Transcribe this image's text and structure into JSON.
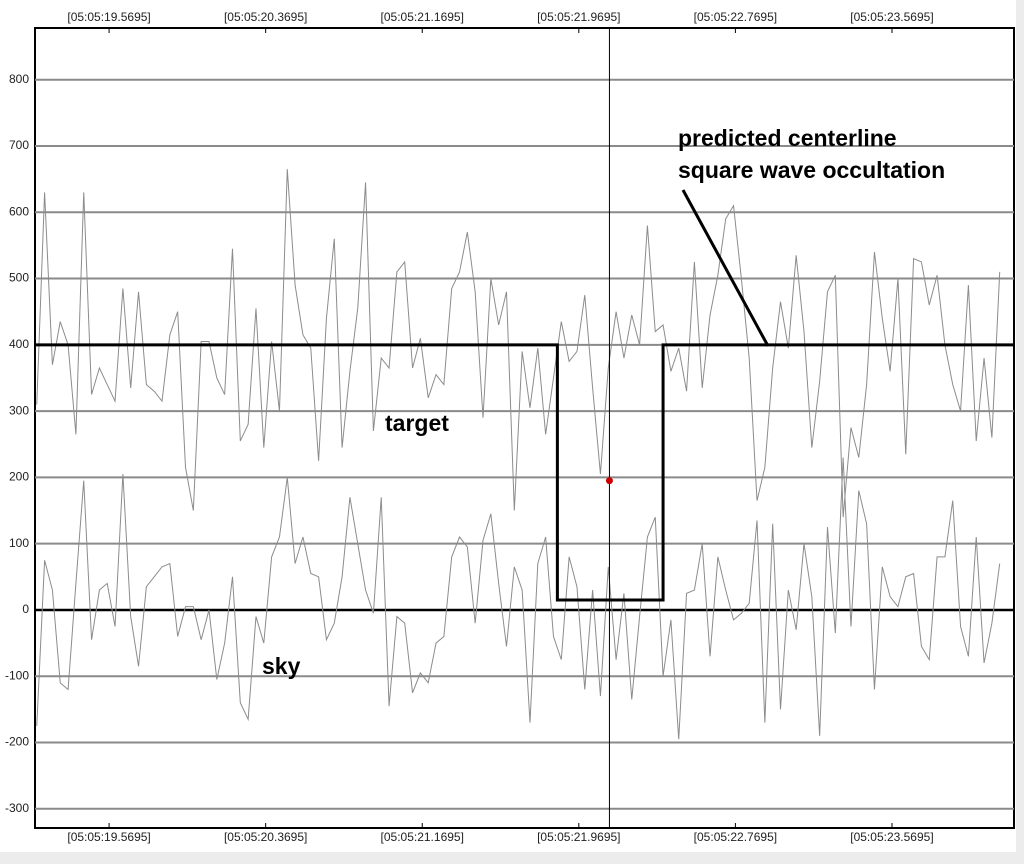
{
  "chart_data": {
    "type": "line",
    "x": [
      19.2,
      19.24,
      19.28,
      19.32,
      19.36,
      19.4,
      19.44,
      19.48,
      19.52,
      19.56,
      19.6,
      19.64,
      19.68,
      19.72,
      19.76,
      19.8,
      19.84,
      19.88,
      19.92,
      19.96,
      20,
      20.04,
      20.08,
      20.12,
      20.16,
      20.2,
      20.24,
      20.28,
      20.32,
      20.36,
      20.4,
      20.44,
      20.48,
      20.52,
      20.56,
      20.6,
      20.64,
      20.68,
      20.72,
      20.76,
      20.8,
      20.84,
      20.88,
      20.92,
      20.96,
      21,
      21.04,
      21.08,
      21.12,
      21.16,
      21.2,
      21.24,
      21.28,
      21.32,
      21.36,
      21.4,
      21.44,
      21.48,
      21.52,
      21.56,
      21.6,
      21.64,
      21.68,
      21.72,
      21.76,
      21.8,
      21.84,
      21.88,
      21.92,
      21.96,
      22,
      22.04,
      22.08,
      22.12,
      22.16,
      22.2,
      22.24,
      22.28,
      22.32,
      22.36,
      22.4,
      22.44,
      22.48,
      22.52,
      22.56,
      22.6,
      22.64,
      22.68,
      22.72,
      22.76,
      22.8,
      22.84,
      22.88,
      22.92,
      22.96,
      23,
      23.04,
      23.08,
      23.12,
      23.16,
      23.2,
      23.24,
      23.28,
      23.32,
      23.36,
      23.4,
      23.44,
      23.48,
      23.52,
      23.56,
      23.6,
      23.64,
      23.68,
      23.72,
      23.76,
      23.8,
      23.84,
      23.88,
      23.92,
      23.96,
      24,
      24.04,
      24.08,
      24.12
    ],
    "series": [
      {
        "name": "target",
        "color": "#8c8c8c",
        "values": [
          310,
          630,
          370,
          435,
          400,
          265,
          630,
          325,
          365,
          340,
          315,
          485,
          335,
          480,
          340,
          330,
          315,
          415,
          450,
          215,
          150,
          405,
          405,
          350,
          325,
          545,
          255,
          280,
          455,
          245,
          405,
          300,
          665,
          490,
          415,
          395,
          225,
          440,
          560,
          245,
          360,
          455,
          645,
          270,
          380,
          365,
          510,
          525,
          365,
          410,
          320,
          355,
          340,
          485,
          510,
          570,
          480,
          290,
          500,
          430,
          480,
          150,
          390,
          305,
          395,
          265,
          350,
          435,
          375,
          390,
          475,
          335,
          205,
          365,
          450,
          380,
          445,
          400,
          580,
          420,
          430,
          360,
          395,
          330,
          525,
          335,
          445,
          505,
          590,
          610,
          500,
          380,
          165,
          215,
          365,
          465,
          395,
          535,
          420,
          245,
          345,
          480,
          505,
          140,
          275,
          230,
          340,
          540,
          440,
          360,
          500,
          235,
          530,
          525,
          460,
          505,
          400,
          340,
          300,
          490,
          255,
          380,
          260,
          510
        ]
      },
      {
        "name": "sky",
        "color": "#8c8c8c",
        "values": [
          -175,
          75,
          30,
          -110,
          -120,
          40,
          195,
          -45,
          30,
          40,
          -25,
          205,
          -10,
          -85,
          35,
          50,
          65,
          70,
          -40,
          5,
          5,
          -45,
          0,
          -105,
          -50,
          50,
          -140,
          -165,
          -10,
          -50,
          80,
          110,
          200,
          70,
          110,
          55,
          50,
          -45,
          -20,
          50,
          170,
          100,
          30,
          -5,
          170,
          -145,
          -10,
          -20,
          -125,
          -95,
          -110,
          -50,
          -40,
          80,
          110,
          95,
          -20,
          105,
          145,
          40,
          -55,
          65,
          30,
          -170,
          70,
          110,
          -40,
          -75,
          80,
          35,
          -120,
          30,
          -130,
          65,
          -75,
          25,
          -135,
          -10,
          110,
          140,
          -100,
          -15,
          -195,
          25,
          30,
          100,
          -70,
          80,
          30,
          -15,
          -5,
          10,
          135,
          -170,
          130,
          -150,
          30,
          -30,
          100,
          20,
          -190,
          125,
          -35,
          230,
          -25,
          180,
          130,
          -120,
          65,
          20,
          5,
          50,
          55,
          -55,
          -75,
          80,
          80,
          165,
          -25,
          -70,
          110,
          -80,
          -20,
          70
        ]
      }
    ],
    "model": {
      "color": "#000000",
      "x": [
        19.191,
        21.86,
        21.86,
        22.4,
        22.4,
        24.193
      ],
      "values": [
        400,
        400,
        15,
        15,
        400,
        400
      ]
    },
    "annotation": [
      "predicted centerline",
      "square wave occultation"
    ],
    "cursor": {
      "x": 22.126,
      "value": 195,
      "color": "#cc0000"
    },
    "xlim": [
      19.191,
      24.193
    ],
    "xticks": [
      {
        "value": 19.5695,
        "label": "[05:05:19.5695]"
      },
      {
        "value": 20.3695,
        "label": "[05:05:20.3695]"
      },
      {
        "value": 21.1695,
        "label": "[05:05:21.1695]"
      },
      {
        "value": 21.9695,
        "label": "[05:05:21.9695]"
      },
      {
        "value": 22.7695,
        "label": "[05:05:22.7695]"
      },
      {
        "value": 23.5695,
        "label": "[05:05:23.5695]"
      }
    ],
    "ylim": [
      -329,
      878
    ],
    "yticks": [
      -300,
      -200,
      -100,
      0,
      100,
      200,
      300,
      400,
      500,
      600,
      700,
      800
    ],
    "grid": true
  }
}
